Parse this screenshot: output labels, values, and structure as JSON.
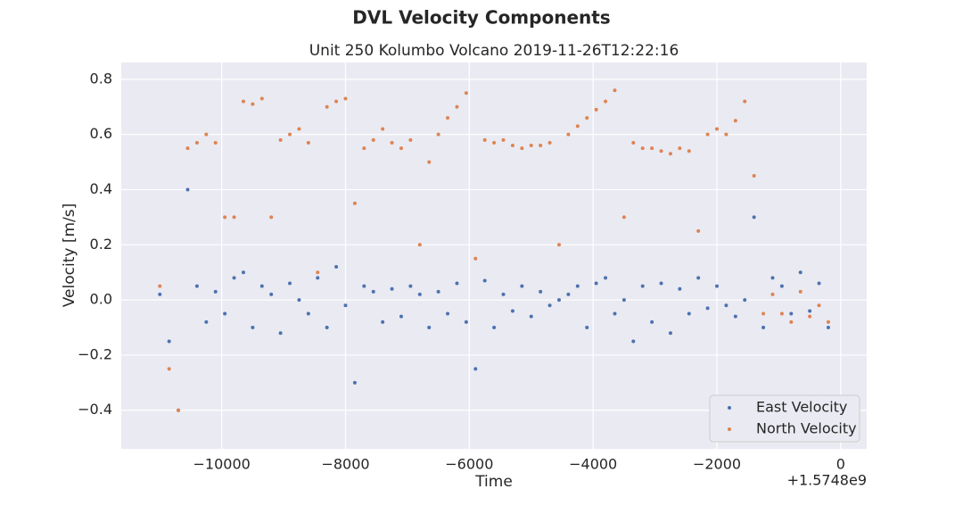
{
  "chart_data": {
    "type": "scatter",
    "title": "DVL Velocity Components",
    "subtitle": "Unit 250 Kolumbo Volcano 2019-11-26T12:22:16",
    "x_label": "Time",
    "y_label": "Velocity [m/s]",
    "x_offset_label": "+1.5748e9",
    "x": [
      -11000,
      -10850,
      -10700,
      -10550,
      -10400,
      -10250,
      -10100,
      -9950,
      -9800,
      -9650,
      -9500,
      -9350,
      -9200,
      -9050,
      -8900,
      -8750,
      -8600,
      -8450,
      -8300,
      -8150,
      -8000,
      -7850,
      -7700,
      -7550,
      -7400,
      -7250,
      -7100,
      -6950,
      -6800,
      -6650,
      -6500,
      -6350,
      -6200,
      -6050,
      -5900,
      -5750,
      -5600,
      -5450,
      -5300,
      -5150,
      -5000,
      -4850,
      -4700,
      -4550,
      -4400,
      -4250,
      -4100,
      -3950,
      -3800,
      -3650,
      -3500,
      -3350,
      -3200,
      -3050,
      -2900,
      -2750,
      -2600,
      -2450,
      -2300,
      -2150,
      -2000,
      -1850,
      -1700,
      -1550,
      -1400,
      -1250,
      -1100,
      -950,
      -800,
      -650,
      -500,
      -350,
      -200
    ],
    "series": [
      {
        "name": "East Velocity",
        "color": "#4c72b0",
        "values": [
          0.02,
          -0.15,
          -0.4,
          0.4,
          0.05,
          -0.08,
          0.03,
          -0.05,
          0.08,
          0.1,
          -0.1,
          0.05,
          0.02,
          -0.12,
          0.06,
          0.0,
          -0.05,
          0.08,
          -0.1,
          0.12,
          -0.02,
          -0.3,
          0.05,
          0.03,
          -0.08,
          0.04,
          -0.06,
          0.05,
          0.02,
          -0.1,
          0.03,
          -0.05,
          0.06,
          -0.08,
          -0.25,
          0.07,
          -0.1,
          0.02,
          -0.04,
          0.05,
          -0.06,
          0.03,
          -0.02,
          0.0,
          0.02,
          0.05,
          -0.1,
          0.06,
          0.08,
          -0.05,
          0.0,
          -0.15,
          0.05,
          -0.08,
          0.06,
          -0.12,
          0.04,
          -0.05,
          0.08,
          -0.03,
          0.05,
          -0.02,
          -0.06,
          0.0,
          0.3,
          -0.1,
          0.08,
          0.05,
          -0.05,
          0.1,
          -0.04,
          0.06,
          -0.1
        ]
      },
      {
        "name": "North Velocity",
        "color": "#dd8452",
        "values": [
          0.05,
          -0.25,
          -0.4,
          0.55,
          0.57,
          0.6,
          0.57,
          0.3,
          0.3,
          0.72,
          0.71,
          0.73,
          0.3,
          0.58,
          0.6,
          0.62,
          0.57,
          0.1,
          0.7,
          0.72,
          0.73,
          0.35,
          0.55,
          0.58,
          0.62,
          0.57,
          0.55,
          0.58,
          0.2,
          0.5,
          0.6,
          0.66,
          0.7,
          0.75,
          0.15,
          0.58,
          0.57,
          0.58,
          0.56,
          0.55,
          0.56,
          0.56,
          0.57,
          0.2,
          0.6,
          0.63,
          0.66,
          0.69,
          0.72,
          0.76,
          0.3,
          0.57,
          0.55,
          0.55,
          0.54,
          0.53,
          0.55,
          0.54,
          0.25,
          0.6,
          0.62,
          0.6,
          0.65,
          0.72,
          0.45,
          -0.05,
          0.02,
          -0.05,
          -0.08,
          0.03,
          -0.06,
          -0.02,
          -0.08
        ]
      }
    ],
    "xlim": [
      -11623,
      420
    ],
    "xticks": [
      {
        "value": -10000,
        "label": "−10000"
      },
      {
        "value": -8000,
        "label": "−8000"
      },
      {
        "value": -6000,
        "label": "−6000"
      },
      {
        "value": -4000,
        "label": "−4000"
      },
      {
        "value": -2000,
        "label": "−2000"
      },
      0
    ],
    "ylim": [
      -0.54,
      0.861
    ],
    "yticks": [
      {
        "value": -0.4,
        "label": "−0.4"
      },
      {
        "value": -0.2,
        "label": "−0.2"
      },
      {
        "value": 0,
        "label": "0.0"
      },
      0.2,
      0.4,
      0.6,
      0.8
    ],
    "grid": true,
    "legend": "lower right"
  }
}
